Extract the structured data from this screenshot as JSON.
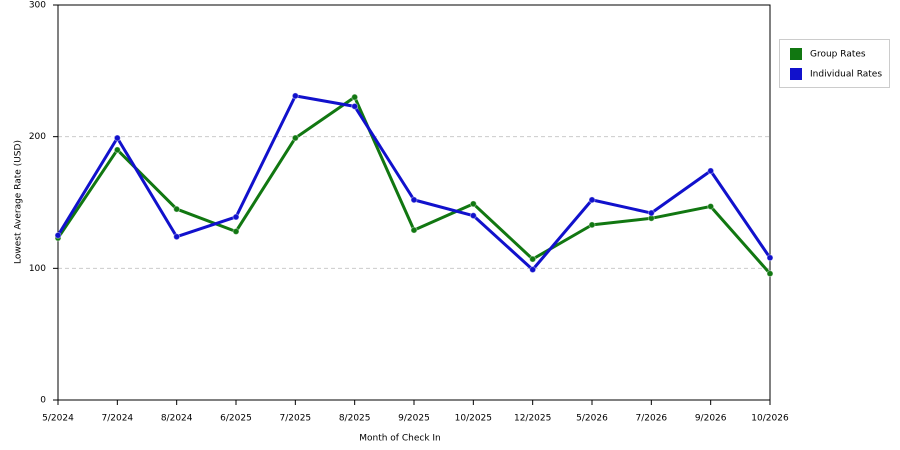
{
  "chart_data": {
    "type": "line",
    "x_label": "Month of Check In",
    "y_label": "Lowest Average Rate (USD)",
    "categories": [
      "5/2024",
      "7/2024",
      "8/2024",
      "6/2025",
      "7/2025",
      "8/2025",
      "9/2025",
      "10/2025",
      "12/2025",
      "5/2026",
      "7/2026",
      "9/2026",
      "10/2026"
    ],
    "series": [
      {
        "name": "Group Rates",
        "color": "#117711",
        "values": [
          123,
          190,
          145,
          128,
          199,
          230,
          129,
          149,
          107,
          133,
          138,
          147,
          96
        ]
      },
      {
        "name": "Individual Rates",
        "color": "#1111cc",
        "values": [
          125,
          199,
          124,
          139,
          231,
          223,
          152,
          140,
          99,
          152,
          142,
          174,
          108
        ]
      }
    ],
    "ylim": [
      0,
      300
    ],
    "yticks": [
      0,
      100,
      200,
      300
    ],
    "grid": true,
    "legend": "right"
  }
}
